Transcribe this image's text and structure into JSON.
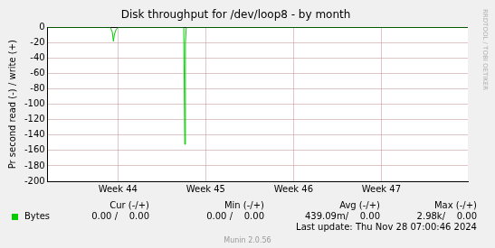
{
  "chart_data": {
    "type": "line",
    "title": "Disk throughput for /dev/loop8 - by month",
    "y_label": "Pr second read (-) / write (+)",
    "x": [
      0,
      5.0,
      5.15,
      5.24,
      5.32,
      5.45,
      5.6,
      10.85,
      10.93,
      10.98,
      11.05,
      33.5
    ],
    "series": [
      {
        "name": "Bytes",
        "color": "#00cc00",
        "values": [
          0,
          0,
          -6,
          -18,
          -9,
          -3,
          0,
          0,
          -152,
          -20,
          0,
          0
        ]
      }
    ],
    "xlim": [
      0,
      33.5
    ],
    "xticks": [
      {
        "value": 5.6,
        "label": "Week 44"
      },
      {
        "value": 12.6,
        "label": "Week 45"
      },
      {
        "value": 19.6,
        "label": "Week 46"
      },
      {
        "value": 26.6,
        "label": "Week 47"
      }
    ],
    "ylim": [
      -200,
      0
    ],
    "yticks": [
      -200,
      -180,
      -160,
      -140,
      -120,
      -100,
      -80,
      -60,
      -40,
      -20,
      0
    ],
    "grid": true
  },
  "legend_table": {
    "headers": [
      "Cur (-/+)",
      "Min (-/+)",
      "Avg (-/+)",
      "Max (-/+)"
    ],
    "cells": [
      "0.00 /    0.00",
      "0.00 /    0.00",
      "439.09m/    0.00",
      "2.98k/    0.00"
    ]
  },
  "footer": "Last update: Thu Nov 28 07:00:46 2024",
  "watermark": "Munin 2.0.56",
  "side_text": "RRDTOOL / TOBI OETIKER"
}
